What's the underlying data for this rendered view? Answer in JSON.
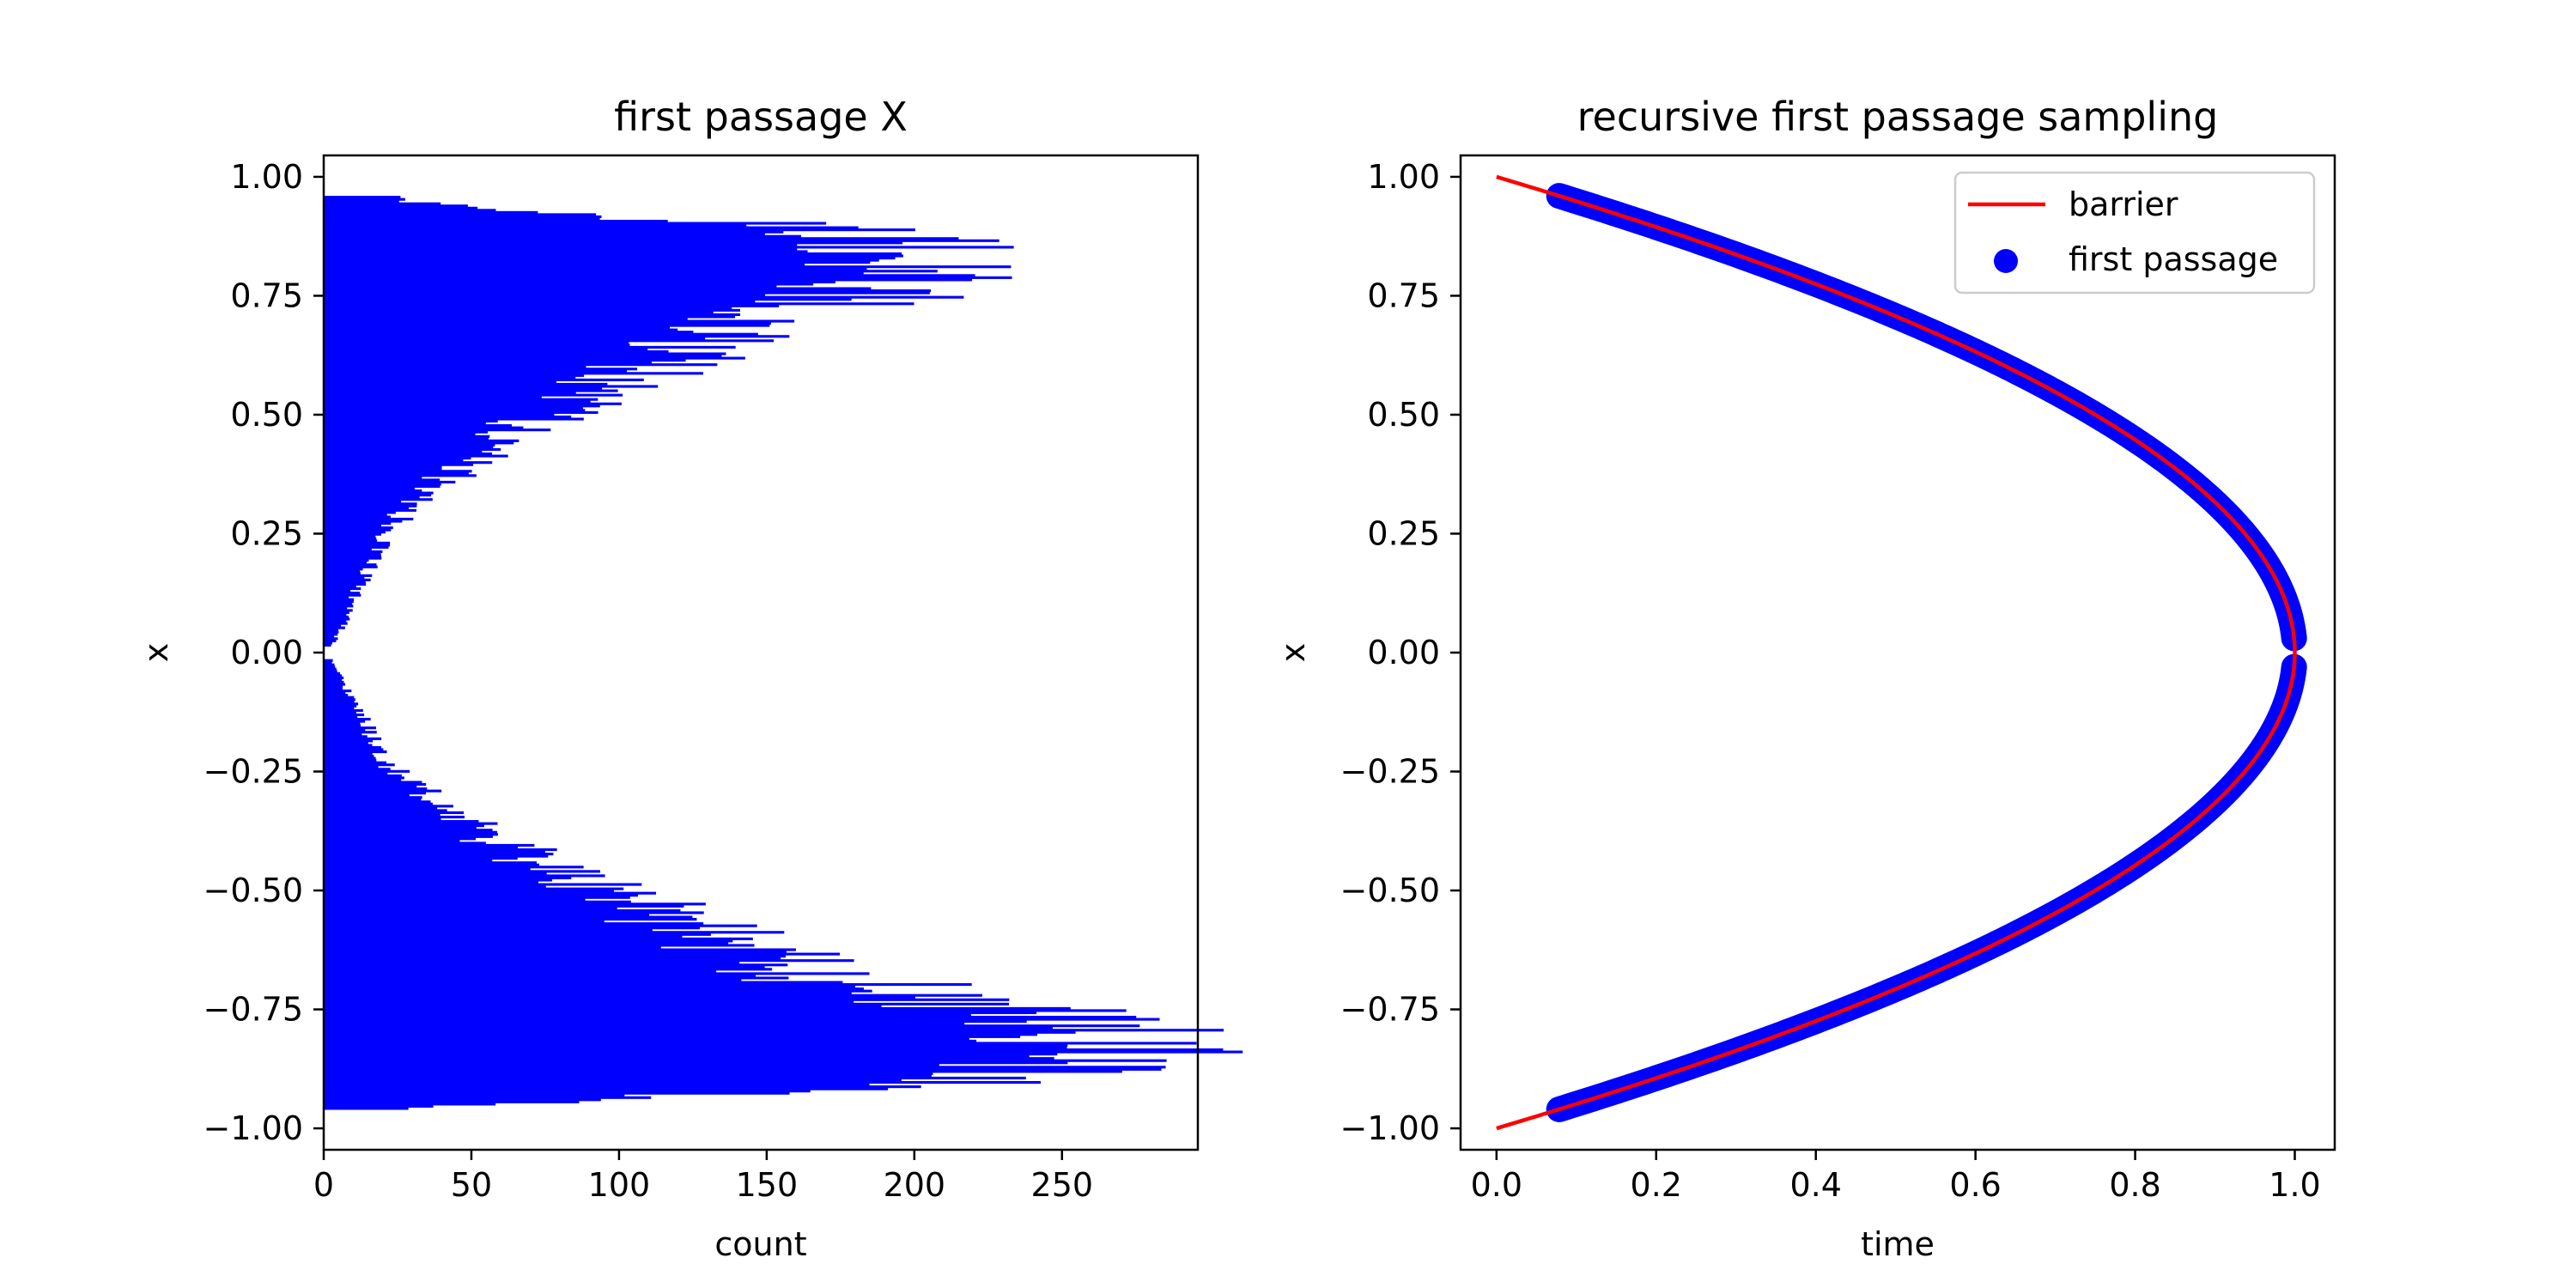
{
  "chart_data": [
    {
      "type": "bar",
      "orientation": "horizontal",
      "title": "first passage X",
      "xlabel": "count",
      "ylabel": "x",
      "xlim": [
        0,
        296
      ],
      "ylim": [
        -1.045,
        1.045
      ],
      "xticks": [
        0,
        50,
        100,
        150,
        200,
        250
      ],
      "yticks": [
        -1.0,
        -0.75,
        -0.5,
        -0.25,
        0.0,
        0.25,
        0.5,
        0.75,
        1.0
      ],
      "ytick_labels": [
        "−1.00",
        "−0.75",
        "−0.50",
        "−0.25",
        "0.00",
        "0.25",
        "0.50",
        "0.75",
        "1.00"
      ],
      "grid": false,
      "color": "#0000ff",
      "bin_range": [
        -0.96,
        0.96
      ],
      "profile_knots": {
        "x": [
          0.0,
          0.01,
          0.03,
          0.05,
          0.1,
          0.2,
          0.25,
          0.3,
          0.4,
          0.5,
          0.6,
          0.7,
          0.75,
          0.8,
          0.85,
          0.88,
          0.9,
          0.93,
          0.95,
          0.96
        ],
        "upper_count": [
          0,
          2,
          4,
          6,
          9,
          17,
          22,
          28,
          48,
          75,
          110,
          150,
          185,
          210,
          200,
          185,
          150,
          60,
          30,
          20
        ],
        "lower_count": [
          0,
          2,
          4,
          6,
          10,
          18,
          25,
          35,
          60,
          95,
          135,
          185,
          235,
          255,
          265,
          240,
          225,
          120,
          50,
          20
        ]
      },
      "notes": "Histogram of first-passage x values; counts smallest near x=0, peaking near |x|~0.8 (max about 280 near -0.85, about 258 near +0.78)."
    },
    {
      "type": "line+scatter",
      "title": "recursive first passage sampling",
      "xlabel": "time",
      "ylabel": "x",
      "xlim": [
        -0.045,
        1.05
      ],
      "ylim": [
        -1.045,
        1.045
      ],
      "xticks": [
        0.0,
        0.2,
        0.4,
        0.6,
        0.8,
        1.0
      ],
      "xtick_labels": [
        "0.0",
        "0.2",
        "0.4",
        "0.6",
        "0.8",
        "1.0"
      ],
      "yticks": [
        -1.0,
        -0.75,
        -0.5,
        -0.25,
        0.0,
        0.25,
        0.5,
        0.75,
        1.0
      ],
      "ytick_labels": [
        "−1.00",
        "−0.75",
        "−0.50",
        "−0.25",
        "0.00",
        "0.25",
        "0.50",
        "0.75",
        "1.00"
      ],
      "grid": false,
      "legend_position": "upper right",
      "series": [
        {
          "name": "barrier",
          "kind": "line",
          "color": "#ff0000",
          "formula": "x = ±sqrt(1 - t)",
          "t_range": [
            0.0,
            1.0
          ]
        },
        {
          "name": "first passage",
          "kind": "scatter",
          "color": "#0000ff",
          "formula": "points along x = ±sqrt(1 - t)",
          "x_range_abs": [
            0.03,
            0.96
          ]
        }
      ]
    }
  ]
}
